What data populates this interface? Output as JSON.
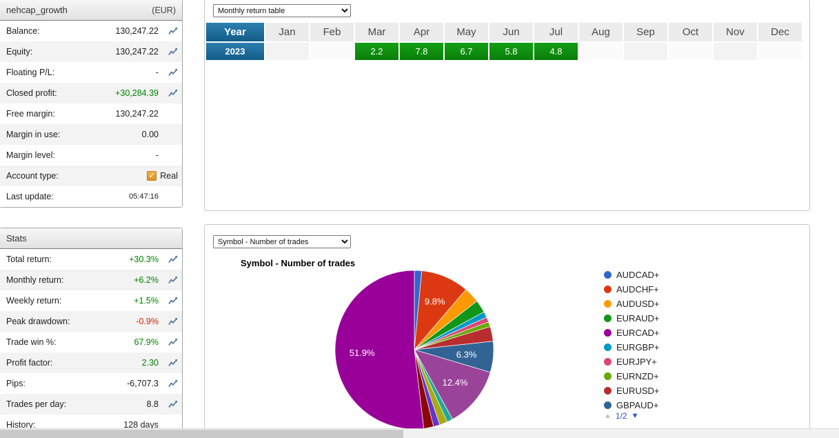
{
  "account": {
    "title": "nehcap_growth",
    "currency": "(EUR)",
    "rows": [
      {
        "label": "Balance:",
        "value": "130,247.22",
        "color": "default",
        "icon": true
      },
      {
        "label": "Equity:",
        "value": "130,247.22",
        "color": "default",
        "icon": true
      },
      {
        "label": "Floating P/L:",
        "value": "-",
        "color": "default",
        "icon": true
      },
      {
        "label": "Closed profit:",
        "value": "+30,284.39",
        "color": "green",
        "icon": true
      },
      {
        "label": "Free margin:",
        "value": "130,247.22",
        "color": "default",
        "icon": false
      },
      {
        "label": "Margin in use:",
        "value": "0.00",
        "color": "default",
        "icon": false
      },
      {
        "label": "Margin level:",
        "value": "-",
        "color": "default",
        "icon": false
      },
      {
        "label": "Account type:",
        "value": "Real",
        "color": "default",
        "icon": false,
        "checkbox": true
      },
      {
        "label": "Last update:",
        "value": "05:47:16",
        "color": "default",
        "icon": false,
        "small": true
      }
    ]
  },
  "stats": {
    "title": "Stats",
    "rows": [
      {
        "label": "Total return:",
        "value": "+30.3%",
        "color": "green",
        "icon": true
      },
      {
        "label": "Monthly return:",
        "value": "+6.2%",
        "color": "green",
        "icon": true
      },
      {
        "label": "Weekly return:",
        "value": "+1.5%",
        "color": "green",
        "icon": true
      },
      {
        "label": "Peak drawdown:",
        "value": "-0.9%",
        "color": "red",
        "icon": true
      },
      {
        "label": "Trade win %:",
        "value": "67.9%",
        "color": "green",
        "icon": true
      },
      {
        "label": "Profit factor:",
        "value": "2.30",
        "color": "green",
        "icon": true
      },
      {
        "label": "Pips:",
        "value": "-6,707.3",
        "color": "default",
        "icon": true
      },
      {
        "label": "Trades per day:",
        "value": "8.8",
        "color": "default",
        "icon": true
      },
      {
        "label": "History:",
        "value": "128 days",
        "color": "default",
        "icon": false
      }
    ]
  },
  "monthly_panel": {
    "dropdown": "Monthly return table",
    "table": {
      "header": [
        "Year",
        "Jan",
        "Feb",
        "Mar",
        "Apr",
        "May",
        "Jun",
        "Jul",
        "Aug",
        "Sep",
        "Oct",
        "Nov",
        "Dec"
      ],
      "rows": [
        {
          "year": "2023",
          "values": [
            "",
            "",
            "2.2",
            "7.8",
            "6.7",
            "5.8",
            "4.8",
            "",
            "",
            "",
            "",
            ""
          ]
        }
      ]
    }
  },
  "symbol_panel": {
    "dropdown": "Symbol - Number of trades",
    "chart_title": "Symbol - Number of trades",
    "pagination": {
      "up": "▲",
      "page": "1/2",
      "down": "▼"
    }
  },
  "chart_data": {
    "type": "pie",
    "title": "Symbol - Number of trades",
    "unit": "percent",
    "legend_position": "right",
    "labels_shown": [
      "51.9%",
      "9.8%",
      "6.3%",
      "12.4%"
    ],
    "slices": [
      {
        "label": "AUDCAD+",
        "value": 1.5,
        "color": "#3366cc"
      },
      {
        "label": "AUDCHF+",
        "value": 9.8,
        "color": "#dc3912"
      },
      {
        "label": "AUDUSD+",
        "value": 3.2,
        "color": "#ff9900"
      },
      {
        "label": "EURAUD+",
        "value": 2.6,
        "color": "#109618"
      },
      {
        "label": "EURGBP+",
        "value": 1.2,
        "color": "#0099c6"
      },
      {
        "label": "EURJPY+",
        "value": 1.0,
        "color": "#dd4477"
      },
      {
        "label": "EURNZD+",
        "value": 1.0,
        "color": "#66aa00"
      },
      {
        "label": "EURUSD+",
        "value": 3.0,
        "color": "#b82e2e"
      },
      {
        "label": "GBPAUD+",
        "value": 6.3,
        "color": "#316395"
      },
      {
        "label": "",
        "value": 12.4,
        "color": "#994499"
      },
      {
        "label": "",
        "value": 1.2,
        "color": "#22aa99"
      },
      {
        "label": "",
        "value": 1.6,
        "color": "#aaaa11"
      },
      {
        "label": "",
        "value": 1.3,
        "color": "#6633cc"
      },
      {
        "label": "",
        "value": 2.0,
        "color": "#8b0707"
      },
      {
        "label": "EURCAD+",
        "value": 51.9,
        "color": "#990099"
      }
    ],
    "legend": [
      {
        "label": "AUDCAD+",
        "color": "#3366cc"
      },
      {
        "label": "AUDCHF+",
        "color": "#dc3912"
      },
      {
        "label": "AUDUSD+",
        "color": "#ff9900"
      },
      {
        "label": "EURAUD+",
        "color": "#109618"
      },
      {
        "label": "EURCAD+",
        "color": "#990099"
      },
      {
        "label": "EURGBP+",
        "color": "#0099c6"
      },
      {
        "label": "EURJPY+",
        "color": "#dd4477"
      },
      {
        "label": "EURNZD+",
        "color": "#66aa00"
      },
      {
        "label": "EURUSD+",
        "color": "#b82e2e"
      },
      {
        "label": "GBPAUD+",
        "color": "#316395"
      }
    ]
  },
  "colors": {
    "positive_text": "#008000",
    "negative_text": "#cc2200",
    "table_year_bg": "#17689b",
    "table_positive_bg": "#0f930f",
    "pager_active": "#2a56c6",
    "checkbox_orange": "#e8a33d"
  }
}
